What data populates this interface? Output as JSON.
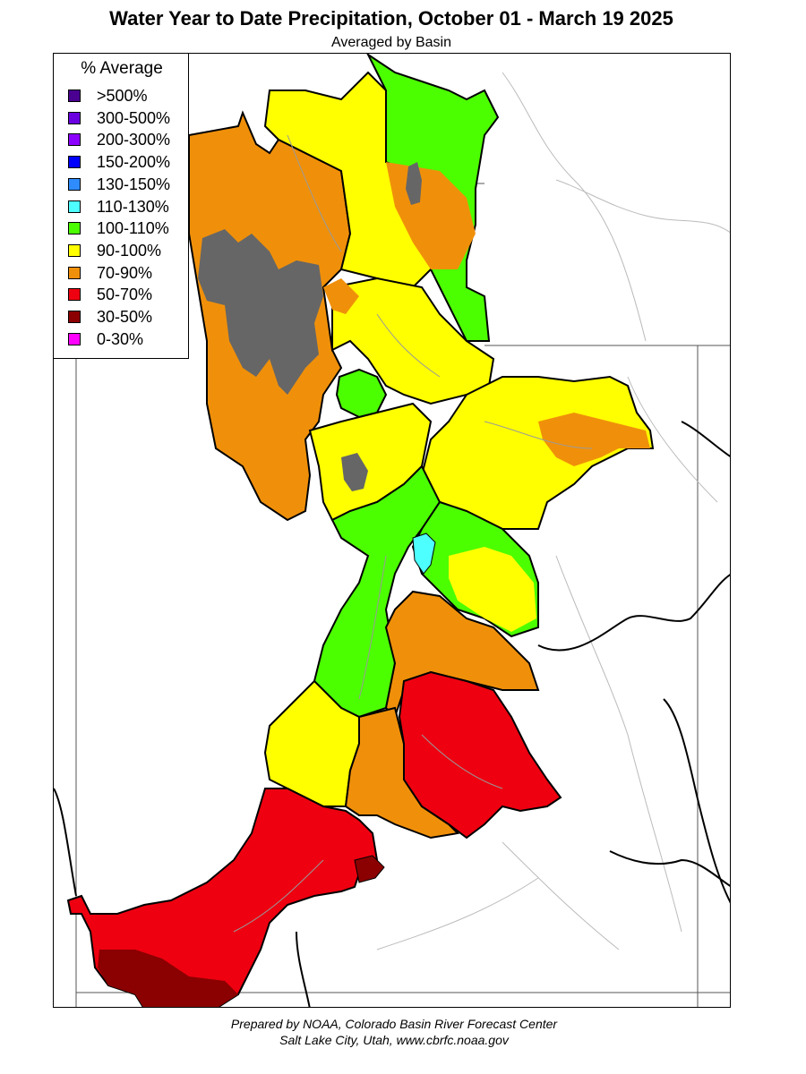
{
  "header": {
    "title": "Water Year to Date Precipitation, October 01  - March 19 2025",
    "subtitle": "Averaged by Basin"
  },
  "legend": {
    "title": "% Average",
    "items": [
      {
        "label": ">500%",
        "color": "#4a0090"
      },
      {
        "label": "300-500%",
        "color": "#6a00e0"
      },
      {
        "label": "200-300%",
        "color": "#8c00ff"
      },
      {
        "label": "150-200%",
        "color": "#0000ff"
      },
      {
        "label": "130-150%",
        "color": "#2f8cff"
      },
      {
        "label": "110-130%",
        "color": "#4dffff"
      },
      {
        "label": "100-110%",
        "color": "#4cff00"
      },
      {
        "label": "90-100%",
        "color": "#ffff00"
      },
      {
        "label": "70-90%",
        "color": "#f0900a"
      },
      {
        "label": "50-70%",
        "color": "#ee0010"
      },
      {
        "label": "30-50%",
        "color": "#8b0000"
      },
      {
        "label": "0-30%",
        "color": "#ff00ff"
      }
    ]
  },
  "map": {
    "lake_color": "#666666",
    "border_color": "#000000",
    "river_color": "#9a9a9a"
  },
  "footer": {
    "line1": "Prepared by NOAA, Colorado Basin River Forecast Center",
    "line2": "Salt Lake City, Utah, www.cbrfc.noaa.gov"
  }
}
